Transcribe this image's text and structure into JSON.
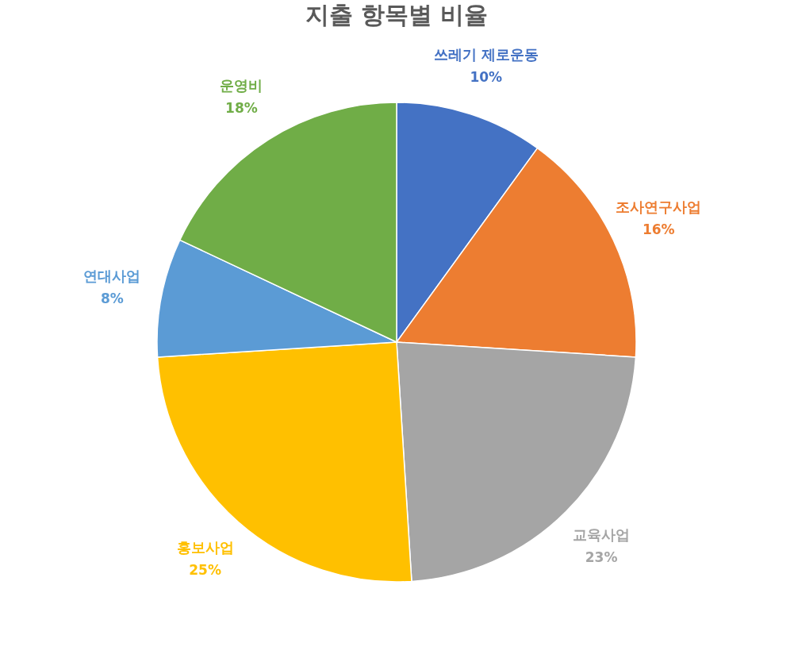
{
  "chart_data": {
    "type": "pie",
    "title": "지출 항목별 비율",
    "categories": [
      "쓰레기 제로운동",
      "조사연구사업",
      "교육사업",
      "홍보사업",
      "연대사업",
      "운영비"
    ],
    "values": [
      10,
      16,
      23,
      25,
      8,
      18
    ],
    "value_labels": [
      "10%",
      "16%",
      "23%",
      "25%",
      "8%",
      "18%"
    ],
    "colors": [
      "#4472c4",
      "#ed7d31",
      "#a5a5a5",
      "#ffc000",
      "#5b9bd5",
      "#70ad47"
    ],
    "legend": false
  }
}
